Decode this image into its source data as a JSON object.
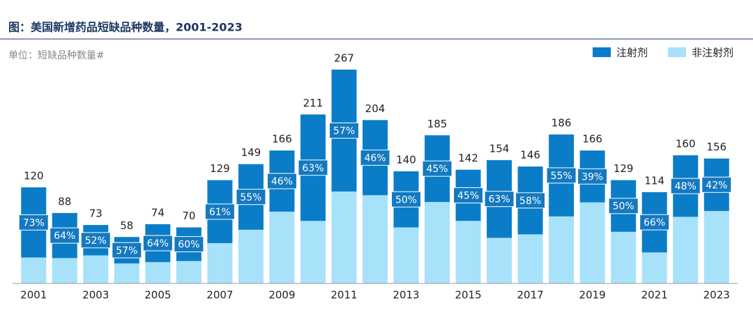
{
  "chart_data": {
    "type": "stacked-share-bar",
    "title": "图：美国新增药品短缺品种数量，2001-2023",
    "subtitle": "单位：短缺品种数量#",
    "categories": [
      "2001",
      null,
      "2003",
      null,
      "2005",
      null,
      "2007",
      null,
      "2009",
      null,
      "2011",
      null,
      "2013",
      null,
      "2015",
      null,
      "2017",
      null,
      "2019",
      null,
      "2021",
      null,
      "2023"
    ],
    "values": [
      120,
      88,
      73,
      58,
      74,
      70,
      129,
      149,
      166,
      211,
      267,
      204,
      140,
      185,
      142,
      154,
      146,
      186,
      166,
      129,
      114,
      160,
      156
    ],
    "series": [
      {
        "name": "注射剂",
        "color": "#0b7dc8",
        "values": [
          73,
          64,
          52,
          57,
          64,
          60,
          61,
          55,
          46,
          63,
          57,
          46,
          50,
          45,
          45,
          63,
          58,
          55,
          39,
          50,
          66,
          48,
          42
        ],
        "value_labels": [
          "73%",
          "64%",
          "52%",
          "57%",
          "64%",
          "60%",
          "61%",
          "55%",
          "46%",
          "63%",
          "57%",
          "46%",
          "50%",
          "45%",
          "45%",
          "63%",
          "58%",
          "55%",
          "39%",
          "50%",
          "66%",
          "48%",
          "42%"
        ]
      },
      {
        "name": "非注射剂",
        "color": "#a7e2fa",
        "values": [
          27,
          36,
          48,
          43,
          36,
          40,
          39,
          45,
          54,
          37,
          43,
          54,
          50,
          55,
          55,
          37,
          42,
          45,
          61,
          50,
          34,
          52,
          58
        ]
      }
    ],
    "ylim": [
      0,
      280
    ],
    "legend": "top-right"
  }
}
